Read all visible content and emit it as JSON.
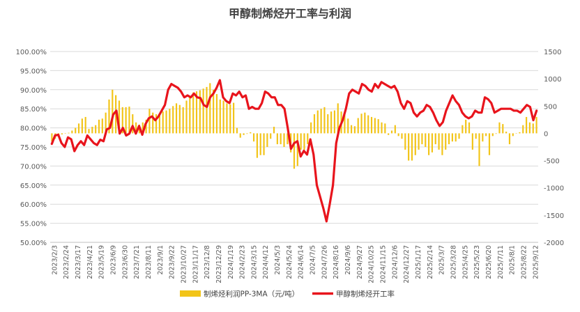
{
  "chart_data": {
    "type": "bar+line",
    "title": "甲醇制烯烃开工率与利润",
    "left_axis": {
      "ticks": [
        "100.00%",
        "95.00%",
        "90.00%",
        "85.00%",
        "80.00%",
        "75.00%",
        "70.00%",
        "65.00%",
        "60.00%",
        "55.00%",
        "50.00%"
      ],
      "range": [
        50,
        100
      ]
    },
    "right_axis": {
      "ticks": [
        "1500",
        "1000",
        "500",
        "0",
        "-500",
        "-1000",
        "-1500",
        "-2000"
      ],
      "range": [
        -2000,
        1500
      ]
    },
    "x_tick_labels": [
      "2023/2/3",
      "2023/2/24",
      "2023/3/17",
      "2023/4/21",
      "2023/5/19",
      "2023/6/9",
      "2023/6/30",
      "2023/7/21",
      "2023/8/11",
      "2023/9/1",
      "2023/9/22",
      "2023/10/27",
      "2023/11/17",
      "2023/12/8",
      "2023/12/29",
      "2024/1/19",
      "2024/2/23",
      "2024/3/15",
      "2024/4/12",
      "2024/5/3",
      "2024/5/24",
      "2024/6/14",
      "2024/7/5",
      "2024/7/26",
      "2024/8/16",
      "2024/9/6",
      "2024/9/27",
      "2024/10/25",
      "2024/11/15",
      "2024/12/6",
      "2024/12/27",
      "2025/1/17",
      "2025/2/14",
      "2025/3/7",
      "2025/3/28",
      "2025/4/25",
      "2025/5/23",
      "2025/6/20",
      "2025/7/11",
      "2025/8/1",
      "2025/8/22",
      "2025/9/12"
    ],
    "series": [
      {
        "name": "制烯烃利润PP-3MA（元/吨）",
        "type": "bar",
        "axis": "right",
        "color": "#F2C418",
        "values": [
          -150,
          -100,
          -50,
          -20,
          0,
          10,
          50,
          100,
          180,
          270,
          300,
          80,
          120,
          150,
          250,
          270,
          380,
          620,
          800,
          700,
          600,
          480,
          480,
          490,
          350,
          200,
          160,
          200,
          250,
          450,
          380,
          350,
          320,
          400,
          420,
          450,
          500,
          550,
          520,
          480,
          600,
          680,
          750,
          770,
          790,
          820,
          850,
          920,
          800,
          720,
          620,
          600,
          550,
          530,
          560,
          100,
          -80,
          -30,
          -10,
          20,
          -150,
          -450,
          -400,
          -400,
          -250,
          -100,
          120,
          -200,
          -200,
          -250,
          -200,
          -350,
          -650,
          -600,
          -300,
          -300,
          -200,
          200,
          350,
          420,
          450,
          480,
          350,
          400,
          420,
          550,
          400,
          340,
          270,
          150,
          130,
          280,
          360,
          380,
          330,
          300,
          280,
          260,
          200,
          180,
          -30,
          50,
          150,
          -50,
          -100,
          -300,
          -500,
          -500,
          -400,
          -300,
          -200,
          -250,
          -400,
          -350,
          -200,
          -300,
          -400,
          -300,
          -200,
          -150,
          -150,
          -100,
          150,
          250,
          200,
          -300,
          -100,
          -600,
          -150,
          -50,
          -400,
          -50,
          -10,
          200,
          170,
          30,
          -200,
          -50,
          0,
          20,
          150,
          300,
          200,
          180,
          300
        ]
      },
      {
        "name": "甲醇制烯烃开工率",
        "type": "line",
        "axis": "left",
        "color": "#E8141C",
        "values": [
          75.8,
          78.0,
          78.2,
          76.0,
          75.0,
          77.5,
          77.0,
          73.9,
          75.5,
          76.5,
          75.5,
          78.0,
          77.0,
          76.0,
          75.5,
          76.9,
          76.5,
          79.6,
          80.0,
          83.5,
          84.5,
          78.5,
          80.0,
          78.0,
          78.5,
          80.5,
          78.5,
          80.5,
          78.2,
          81.0,
          82.5,
          83.0,
          82.0,
          83.0,
          84.5,
          86.0,
          90.0,
          91.5,
          91.0,
          90.5,
          89.5,
          88.0,
          88.5,
          88.0,
          89.0,
          88.0,
          87.8,
          86.0,
          85.5,
          88.0,
          89.0,
          90.5,
          92.5,
          88.0,
          87.0,
          86.5,
          89.0,
          88.5,
          89.5,
          88.0,
          88.5,
          85.0,
          85.5,
          85.0,
          85.0,
          86.5,
          89.5,
          89.0,
          88.0,
          88.0,
          86.0,
          86.0,
          85.0,
          80.0,
          74.5,
          76.0,
          76.5,
          72.5,
          74.0,
          73.0,
          77.0,
          73.0,
          65.0,
          62.0,
          59.0,
          55.5,
          60.0,
          65.0,
          76.0,
          80.0,
          82.0,
          85.0,
          89.0,
          90.0,
          89.5,
          89.0,
          91.5,
          91.0,
          90.0,
          89.5,
          91.5,
          90.5,
          92.0,
          91.5,
          91.0,
          90.5,
          91.0,
          89.5,
          86.5,
          85.0,
          87.0,
          86.5,
          84.0,
          83.0,
          84.0,
          84.5,
          86.0,
          85.5,
          84.0,
          82.0,
          80.5,
          81.5,
          84.5,
          86.5,
          88.5,
          87.0,
          86.0,
          84.0,
          83.0,
          82.5,
          83.0,
          84.5,
          84.0,
          84.0,
          88.0,
          87.5,
          86.5,
          84.0,
          84.5,
          85.0,
          85.0,
          85.0,
          85.0,
          84.5,
          84.5,
          84.0,
          85.0,
          86.0,
          85.5,
          82.0,
          84.5
        ]
      }
    ],
    "legend": {
      "position": "bottom",
      "items": [
        "制烯烃利润PP-3MA（元/吨）",
        "甲醇制烯烃开工率"
      ]
    }
  }
}
